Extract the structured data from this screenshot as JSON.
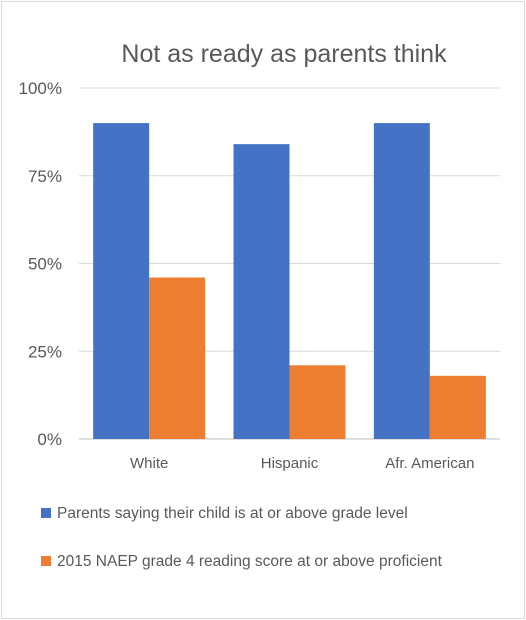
{
  "chart_data": {
    "type": "bar",
    "title": "Not as ready as parents think",
    "categories": [
      "White",
      "Hispanic",
      "Afr. American"
    ],
    "series": [
      {
        "name": "Parents saying their child is at or above grade level",
        "values": [
          90,
          84,
          90
        ],
        "color": "#4472C4"
      },
      {
        "name": "2015 NAEP grade 4 reading score at or above proficient",
        "values": [
          46,
          21,
          18
        ],
        "color": "#ED7D31"
      }
    ],
    "ylim": [
      0,
      100
    ],
    "yticks": [
      "0%",
      "25%",
      "50%",
      "75%",
      "100%"
    ],
    "ytick_values": [
      0,
      25,
      50,
      75,
      100
    ],
    "grid": true,
    "legend_position": "bottom",
    "xlabel": "",
    "ylabel": ""
  }
}
